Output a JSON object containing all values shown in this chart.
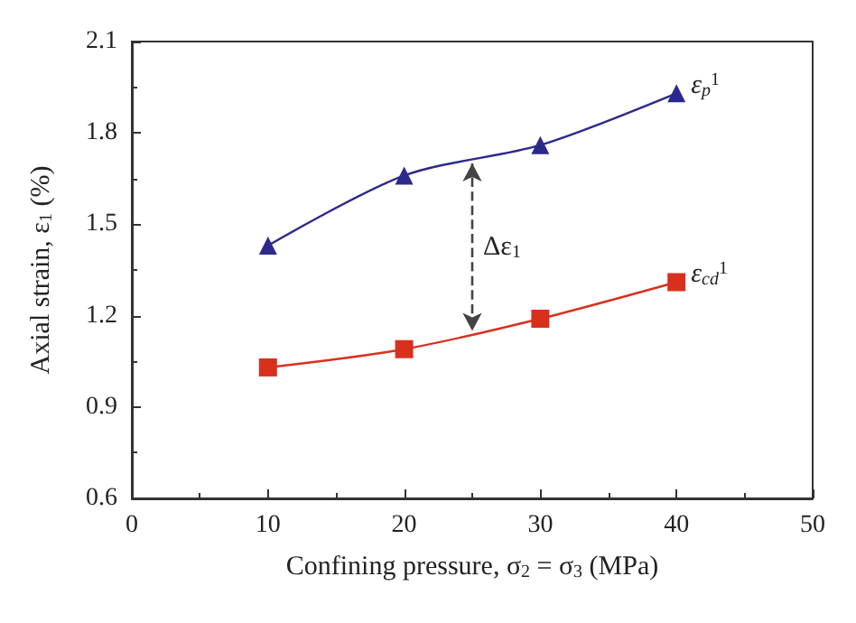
{
  "chart_data": {
    "type": "line",
    "xlabel": "Confining pressure, σ$_{2}$ = σ$_{3}$ (MPa)",
    "ylabel": "Axial strain, ε$_{1}$ (%)",
    "x": [
      10,
      20,
      30,
      40
    ],
    "series": [
      {
        "name": "ε$_{p}$$^{1}$",
        "color": "#2b2a8c",
        "marker": "triangle",
        "values": [
          1.43,
          1.66,
          1.76,
          1.93
        ]
      },
      {
        "name": "ε$_{cd}$$^{1}$",
        "color": "#d9301e",
        "marker": "square",
        "values": [
          1.03,
          1.09,
          1.19,
          1.31
        ]
      }
    ],
    "annotations": [
      "Δε$_{1}$"
    ],
    "xlim": [
      0,
      50
    ],
    "xticks": [
      0,
      10,
      20,
      30,
      40,
      50
    ],
    "ylim": [
      0.6,
      2.1
    ],
    "yticks": [
      0.6,
      0.9,
      1.2,
      1.5,
      1.8,
      2.1
    ],
    "grid": false,
    "legend": false,
    "line_style": "solid"
  }
}
